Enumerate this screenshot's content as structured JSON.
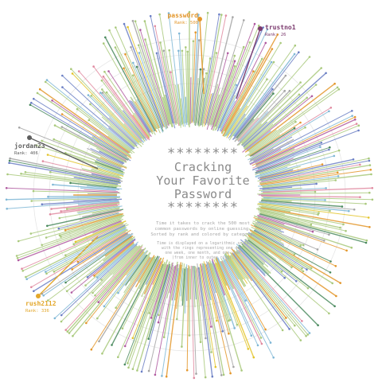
{
  "title": {
    "stars_top": "********",
    "lines": [
      "Cracking",
      "Your Favorite",
      "Password"
    ],
    "stars_bottom": "********"
  },
  "description": [
    "Time it takes to crack the 500 most",
    "common passwords by online guessing.",
    "Sorted by rank and colored by category."
  ],
  "note": [
    "Time is displayed on a logarithmic scale",
    "with the rings representing one day,",
    "one week, one month, and one year",
    "(from inner to outer ring)."
  ],
  "callouts": [
    {
      "name": "passw0rd",
      "rank_label": "Rank: 500",
      "color": "#e3962a"
    },
    {
      "name": "trustno1",
      "rank_label": "Rank: 26",
      "color": "#7b3a6e"
    },
    {
      "name": "jordan23",
      "rank_label": "Rank: 406",
      "color": "#5e5e5e"
    },
    {
      "name": "rush2112",
      "rank_label": "Rank: 336",
      "color": "#e3a72a"
    }
  ],
  "chart_data": {
    "type": "radial-bar",
    "count": 500,
    "scale": "logarithmic",
    "rings": [
      "one day",
      "one week",
      "one month",
      "one year"
    ],
    "category_colors": [
      "#a9c97c",
      "#7fb7d6",
      "#6b7fc4",
      "#e3962a",
      "#b05aa0",
      "#e08aa0",
      "#a3a3a3",
      "#4a8a5e",
      "#e3c42a"
    ],
    "values_note": "500 bars sorted by rank; individual crack times are not printed in the figure"
  }
}
